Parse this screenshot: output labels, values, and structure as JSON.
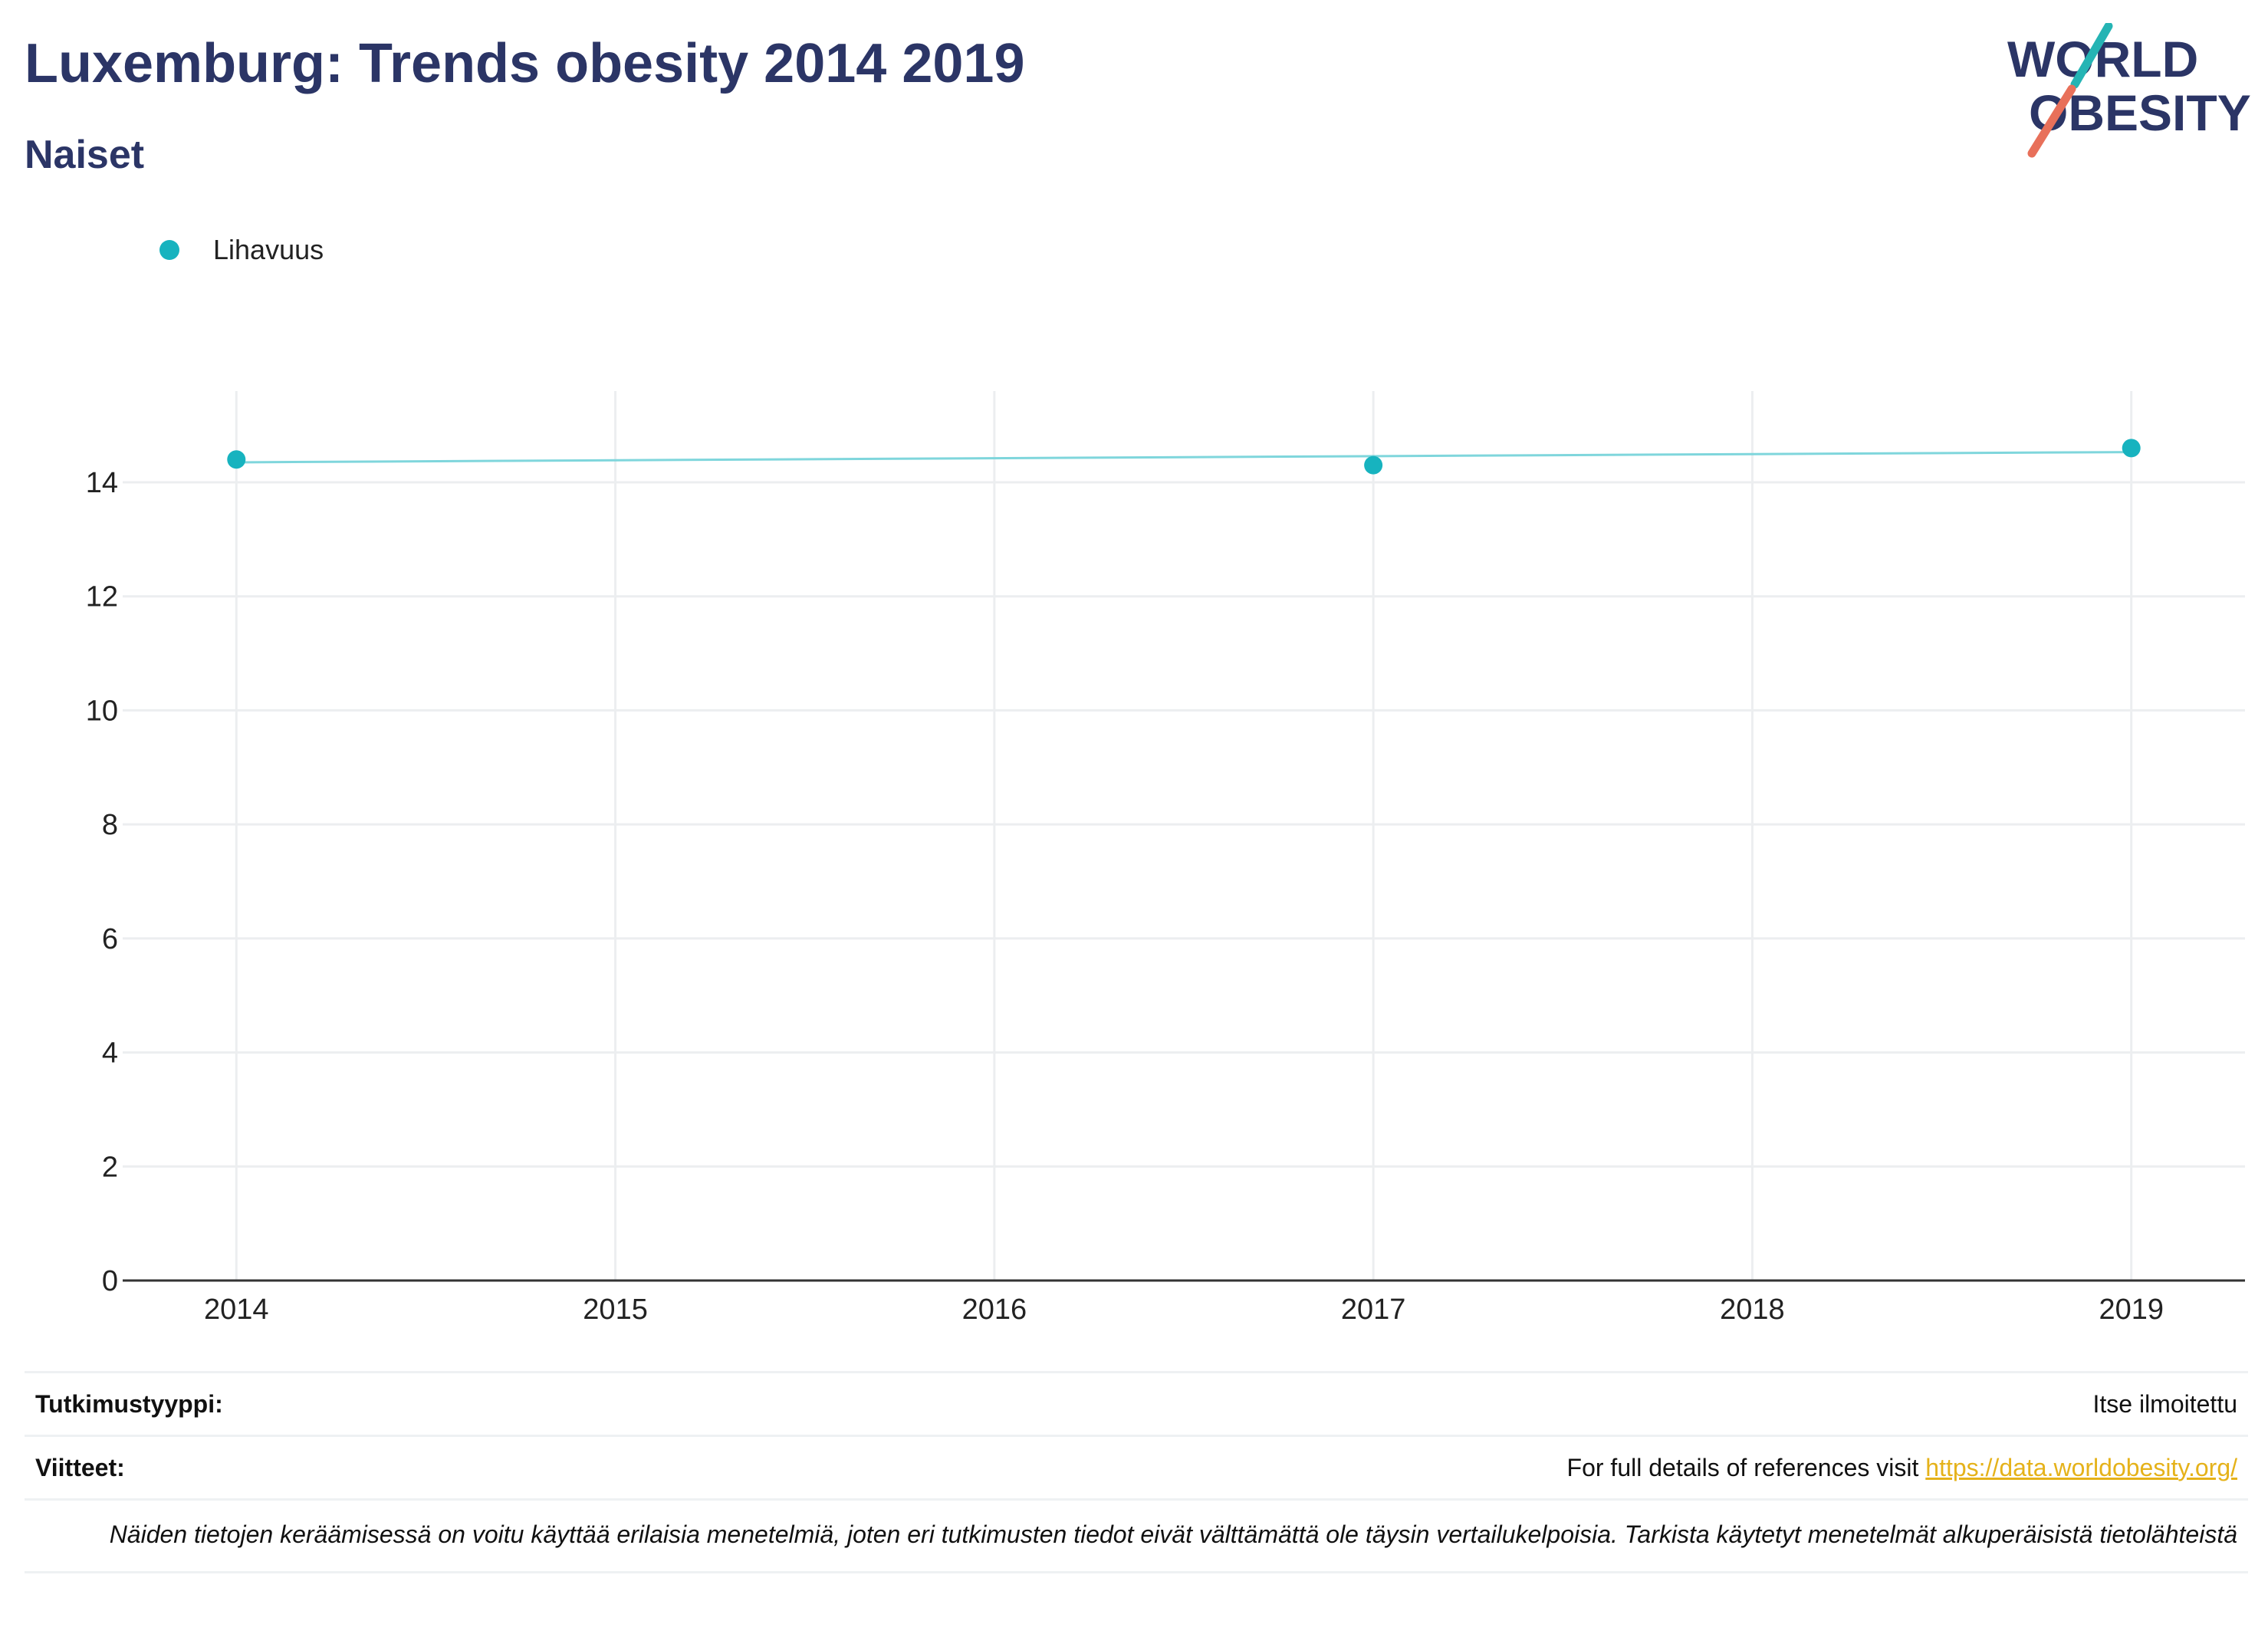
{
  "header": {
    "title": "Luxemburg: Trends obesity 2014 2019",
    "subtitle": "Naiset",
    "logo_line1": "WORLD",
    "logo_line2": "OBESITY"
  },
  "colors": {
    "title": "#2b3566",
    "series": "#17b3bf",
    "trend": "#7fd6dc",
    "link": "#e5b21a",
    "logo_teal": "#25b4b4",
    "logo_coral": "#e8705a"
  },
  "chart_data": {
    "type": "line",
    "title": "Luxemburg: Trends obesity 2014 2019",
    "subtitle": "Naiset",
    "xlabel": "",
    "ylabel": "",
    "x_ticks": [
      "2014",
      "2015",
      "2016",
      "2017",
      "2018",
      "2019"
    ],
    "y_ticks": [
      0,
      2,
      4,
      6,
      8,
      10,
      12,
      14
    ],
    "xlim": [
      2013.7,
      2019.3
    ],
    "ylim": [
      0,
      15.6
    ],
    "grid": true,
    "legend_position": "top-left",
    "series": [
      {
        "name": "Lihavuus",
        "x": [
          2014,
          2017,
          2019
        ],
        "y": [
          14.4,
          14.3,
          14.6
        ],
        "trendline": {
          "x": [
            2014,
            2019
          ],
          "y": [
            14.35,
            14.53
          ]
        }
      }
    ]
  },
  "footer": {
    "study_type_label": "Tutkimustyyppi:",
    "study_type_value": "Itse ilmoitettu",
    "references_label": "Viitteet:",
    "references_text": "For full details of references visit ",
    "references_link": "https://data.worldobesity.org/",
    "note": "Näiden tietojen keräämisessä on voitu käyttää erilaisia menetelmiä, joten eri tutkimusten tiedot eivät välttämättä ole täysin vertailukelpoisia. Tarkista käytetyt menetelmät alkuperäisistä tietolähteistä"
  }
}
